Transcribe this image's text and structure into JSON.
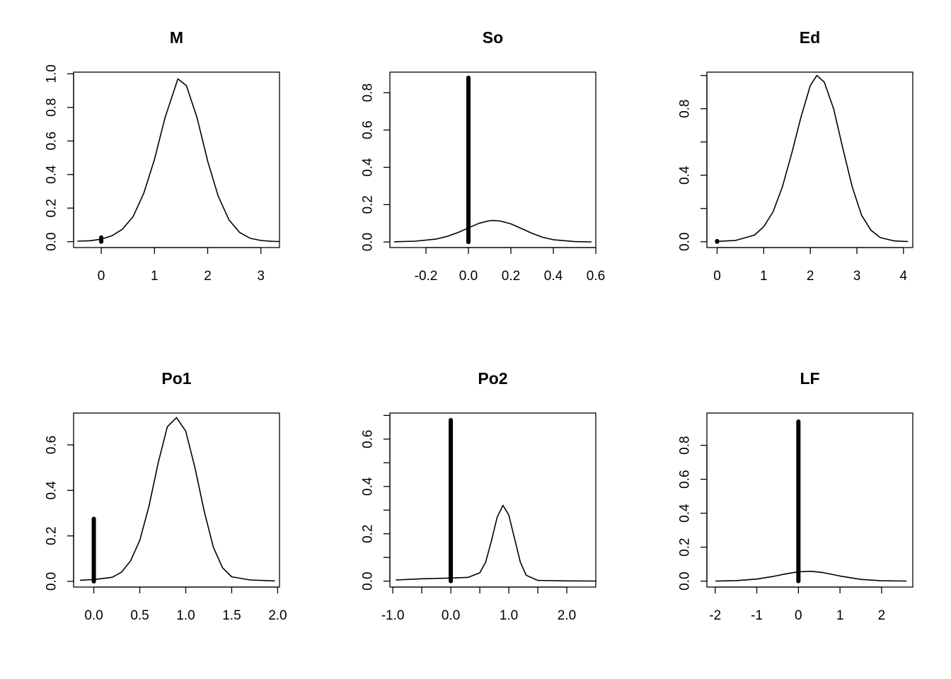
{
  "chart_data": [
    {
      "type": "line",
      "title": "M",
      "xlabel": "",
      "ylabel": "",
      "xlim": [
        -0.52,
        3.35
      ],
      "ylim": [
        -0.035,
        1.01
      ],
      "xticks": [
        0,
        1,
        2,
        3
      ],
      "xtick_labels": [
        "0",
        "1",
        "2",
        "3"
      ],
      "yticks": [
        0,
        0.2,
        0.4,
        0.6,
        0.8,
        1.0
      ],
      "ytick_labels": [
        "0.0",
        "0.2",
        "0.4",
        "0.6",
        "0.8",
        "1.0"
      ],
      "curve": {
        "x": [
          -0.45,
          -0.2,
          0,
          0.2,
          0.4,
          0.6,
          0.8,
          1.0,
          1.2,
          1.44,
          1.6,
          1.8,
          2.0,
          2.2,
          2.4,
          2.6,
          2.8,
          3.0,
          3.2,
          3.35
        ],
        "y": [
          0.003,
          0.006,
          0.015,
          0.035,
          0.075,
          0.15,
          0.29,
          0.49,
          0.74,
          0.97,
          0.93,
          0.74,
          0.48,
          0.27,
          0.13,
          0.055,
          0.02,
          0.007,
          0.002,
          0.001
        ]
      },
      "spike": {
        "x": 0,
        "height": 0.025
      }
    },
    {
      "type": "line",
      "title": "So",
      "xlabel": "",
      "ylabel": "",
      "xlim": [
        -0.37,
        0.6
      ],
      "ylim": [
        -0.03,
        0.91
      ],
      "xticks": [
        -0.2,
        0,
        0.2,
        0.4,
        0.6
      ],
      "xtick_labels": [
        "-0.2",
        "0.0",
        "0.2",
        "0.4",
        "0.6"
      ],
      "yticks": [
        0,
        0.2,
        0.4,
        0.6,
        0.8
      ],
      "ytick_labels": [
        "0.0",
        "0.2",
        "0.4",
        "0.6",
        "0.8"
      ],
      "curve": {
        "x": [
          -0.35,
          -0.25,
          -0.15,
          -0.1,
          -0.05,
          0,
          0.05,
          0.1,
          0.12,
          0.15,
          0.2,
          0.25,
          0.3,
          0.35,
          0.4,
          0.5,
          0.58
        ],
        "y": [
          0.001,
          0.004,
          0.016,
          0.03,
          0.05,
          0.075,
          0.1,
          0.114,
          0.115,
          0.112,
          0.097,
          0.072,
          0.046,
          0.025,
          0.012,
          0.002,
          0.0005
        ]
      },
      "spike": {
        "x": 0,
        "height": 0.88
      }
    },
    {
      "type": "line",
      "title": "Ed",
      "xlabel": "",
      "ylabel": "",
      "xlim": [
        -0.22,
        4.2
      ],
      "ylim": [
        -0.035,
        1.02
      ],
      "xticks": [
        0,
        1,
        2,
        3,
        4
      ],
      "xtick_labels": [
        "0",
        "1",
        "2",
        "3",
        "4"
      ],
      "yticks": [
        0,
        0.2,
        0.4,
        0.6,
        0.8,
        1.0
      ],
      "ytick_labels": [
        "0.0",
        "",
        "0.4",
        "",
        "0.8",
        ""
      ],
      "curve": {
        "x": [
          0,
          0.4,
          0.8,
          1.0,
          1.2,
          1.4,
          1.6,
          1.8,
          2.0,
          2.14,
          2.3,
          2.5,
          2.7,
          2.9,
          3.1,
          3.3,
          3.5,
          3.8,
          4.1
        ],
        "y": [
          0.002,
          0.008,
          0.04,
          0.09,
          0.18,
          0.33,
          0.53,
          0.75,
          0.94,
          1.0,
          0.96,
          0.8,
          0.56,
          0.33,
          0.16,
          0.07,
          0.025,
          0.005,
          0.001
        ]
      },
      "spike": {
        "x": 0,
        "height": 0.004
      }
    },
    {
      "type": "line",
      "title": "Po1",
      "xlabel": "",
      "ylabel": "",
      "xlim": [
        -0.22,
        2.02
      ],
      "ylim": [
        -0.025,
        0.74
      ],
      "xticks": [
        0,
        0.5,
        1.0,
        1.5,
        2.0
      ],
      "xtick_labels": [
        "0.0",
        "0.5",
        "1.0",
        "1.5",
        "2.0"
      ],
      "yticks": [
        0,
        0.2,
        0.4,
        0.6
      ],
      "ytick_labels": [
        "0.0",
        "0.2",
        "0.4",
        "0.6"
      ],
      "curve": {
        "x": [
          -0.15,
          0,
          0.2,
          0.3,
          0.4,
          0.5,
          0.6,
          0.7,
          0.8,
          0.9,
          1.0,
          1.1,
          1.2,
          1.3,
          1.4,
          1.5,
          1.7,
          1.97
        ],
        "y": [
          0.005,
          0.008,
          0.018,
          0.04,
          0.09,
          0.18,
          0.33,
          0.52,
          0.68,
          0.72,
          0.66,
          0.5,
          0.31,
          0.15,
          0.06,
          0.02,
          0.006,
          0.002
        ]
      },
      "spike": {
        "x": 0,
        "height": 0.275
      }
    },
    {
      "type": "line",
      "title": "Po2",
      "xlabel": "",
      "ylabel": "",
      "xlim": [
        -1.05,
        2.5
      ],
      "ylim": [
        -0.025,
        0.71
      ],
      "xticks": [
        -1.0,
        -0.5,
        0,
        0.5,
        1.0,
        1.5,
        2.0
      ],
      "xtick_labels": [
        "-1.0",
        "",
        "0.0",
        "",
        "1.0",
        "",
        "2.0"
      ],
      "yticks": [
        0,
        0.1,
        0.2,
        0.3,
        0.4,
        0.5,
        0.6,
        0.7
      ],
      "ytick_labels": [
        "0.0",
        "",
        "0.2",
        "",
        "0.4",
        "",
        "0.6",
        ""
      ],
      "curve": {
        "x": [
          -0.95,
          -0.5,
          0,
          0.3,
          0.5,
          0.6,
          0.7,
          0.8,
          0.9,
          1.0,
          1.1,
          1.2,
          1.3,
          1.5,
          2.0,
          2.5
        ],
        "y": [
          0.005,
          0.01,
          0.013,
          0.016,
          0.035,
          0.08,
          0.17,
          0.27,
          0.32,
          0.28,
          0.18,
          0.08,
          0.025,
          0.003,
          0.001,
          0.0005
        ]
      },
      "spike": {
        "x": 0,
        "height": 0.68
      }
    },
    {
      "type": "line",
      "title": "LF",
      "xlabel": "",
      "ylabel": "",
      "xlim": [
        -2.2,
        2.75
      ],
      "ylim": [
        -0.035,
        0.99
      ],
      "xticks": [
        -2,
        -1,
        0,
        1,
        2
      ],
      "xtick_labels": [
        "-2",
        "-1",
        "0",
        "1",
        "2"
      ],
      "yticks": [
        0,
        0.2,
        0.4,
        0.6,
        0.8
      ],
      "ytick_labels": [
        "0.0",
        "0.2",
        "0.4",
        "0.6",
        "0.8"
      ],
      "curve": {
        "x": [
          -2.0,
          -1.5,
          -1.0,
          -0.6,
          -0.3,
          0,
          0.3,
          0.6,
          1.0,
          1.5,
          2.0,
          2.6
        ],
        "y": [
          0.0005,
          0.003,
          0.012,
          0.028,
          0.043,
          0.055,
          0.058,
          0.05,
          0.03,
          0.01,
          0.002,
          0.0005
        ]
      },
      "spike": {
        "x": 0,
        "height": 0.94
      }
    }
  ]
}
